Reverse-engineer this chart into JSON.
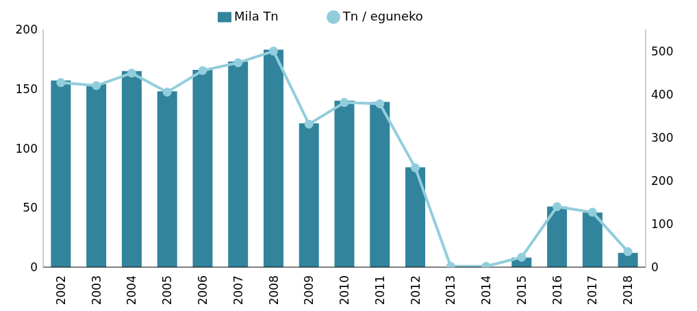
{
  "chart_data": {
    "type": "bar",
    "categories": [
      "2002",
      "2003",
      "2004",
      "2005",
      "2006",
      "2007",
      "2008",
      "2009",
      "2010",
      "2011",
      "2012",
      "2013",
      "2014",
      "2015",
      "2016",
      "2017",
      "2018"
    ],
    "series": [
      {
        "name": "Mila Tn",
        "color": "#31849b",
        "values": [
          157,
          154,
          165,
          148,
          166,
          173,
          183,
          121,
          140,
          139,
          84,
          0,
          0,
          8,
          51,
          46,
          12
        ]
      },
      {
        "name": "Tn / eguneko",
        "type": "line",
        "axis": "y2",
        "color": "#92cddc",
        "values": [
          427,
          420,
          449,
          405,
          455,
          473,
          500,
          331,
          381,
          378,
          230,
          2,
          2,
          23,
          140,
          127,
          36
        ]
      }
    ],
    "ylim": [
      0,
      200
    ],
    "yticks": [
      0,
      50,
      100,
      150,
      200
    ],
    "y2lim": [
      0,
      550
    ],
    "y2ticks": [
      0,
      100,
      200,
      300,
      400,
      500
    ],
    "legend": "top",
    "marker": "circle"
  }
}
